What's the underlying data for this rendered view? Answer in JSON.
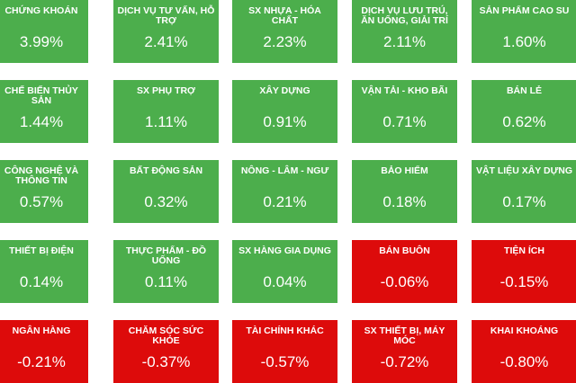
{
  "tiles": [
    {
      "name": "CHỨNG KHOÁN",
      "value": "3.99%",
      "status": "up"
    },
    {
      "name": "DỊCH VỤ TƯ VẤN, HỖ TRỢ",
      "value": "2.41%",
      "status": "up"
    },
    {
      "name": "SX NHỰA - HÓA CHẤT",
      "value": "2.23%",
      "status": "up"
    },
    {
      "name": "DỊCH VỤ LƯU TRÚ, ĂN UỐNG, GIẢI TRÍ",
      "value": "2.11%",
      "status": "up"
    },
    {
      "name": "SẢN PHẨM CAO SU",
      "value": "1.60%",
      "status": "up"
    },
    {
      "name": "CHẾ BIẾN THỦY SẢN",
      "value": "1.44%",
      "status": "up"
    },
    {
      "name": "SX PHỤ TRỢ",
      "value": "1.11%",
      "status": "up"
    },
    {
      "name": "XÂY DỰNG",
      "value": "0.91%",
      "status": "up"
    },
    {
      "name": "VẬN TẢI - KHO BÃI",
      "value": "0.71%",
      "status": "up"
    },
    {
      "name": "BÁN LẺ",
      "value": "0.62%",
      "status": "up"
    },
    {
      "name": "CÔNG NGHỆ VÀ THÔNG TIN",
      "value": "0.57%",
      "status": "up"
    },
    {
      "name": "BẤT ĐỘNG SẢN",
      "value": "0.32%",
      "status": "up"
    },
    {
      "name": "NÔNG - LÂM - NGƯ",
      "value": "0.21%",
      "status": "up"
    },
    {
      "name": "BẢO HIỂM",
      "value": "0.18%",
      "status": "up"
    },
    {
      "name": "VẬT LIỆU XÂY DỰNG",
      "value": "0.17%",
      "status": "up"
    },
    {
      "name": "THIẾT BỊ ĐIỆN",
      "value": "0.14%",
      "status": "up"
    },
    {
      "name": "THỰC PHẨM - ĐỒ UỐNG",
      "value": "0.11%",
      "status": "up"
    },
    {
      "name": "SX HÀNG GIA DỤNG",
      "value": "0.04%",
      "status": "up"
    },
    {
      "name": "BÁN BUÔN",
      "value": "-0.06%",
      "status": "down"
    },
    {
      "name": "TIỆN ÍCH",
      "value": "-0.15%",
      "status": "down"
    },
    {
      "name": "NGÂN HÀNG",
      "value": "-0.21%",
      "status": "down"
    },
    {
      "name": "CHĂM SÓC SỨC KHỎE",
      "value": "-0.37%",
      "status": "down"
    },
    {
      "name": "TÀI CHÍNH KHÁC",
      "value": "-0.57%",
      "status": "down"
    },
    {
      "name": "SX THIẾT BỊ, MÁY MÓC",
      "value": "-0.72%",
      "status": "down"
    },
    {
      "name": "KHAI KHOÁNG",
      "value": "-0.80%",
      "status": "down"
    }
  ],
  "colors": {
    "up": "#4cae4c",
    "down": "#dd0b0b",
    "text": "#ffffff"
  }
}
